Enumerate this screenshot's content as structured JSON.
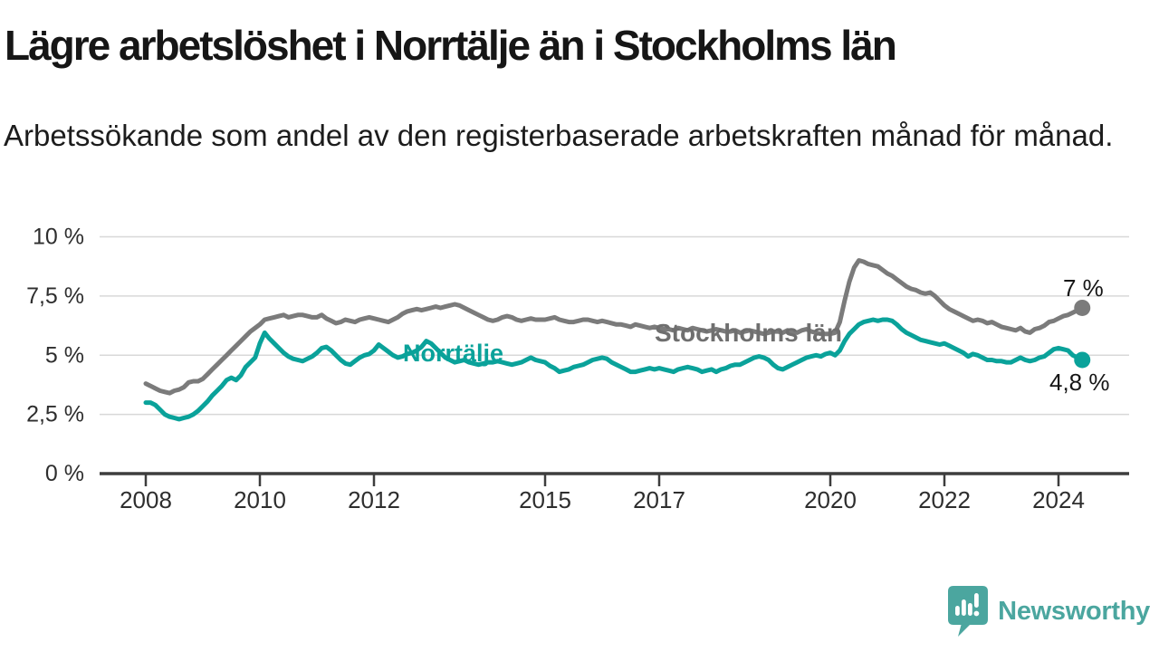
{
  "title": "Lägre arbetslöshet i Norrtälje än i Stockholms län",
  "subtitle": "Arbetssökande som andel av den registerbaserade arbetskraften månad för månad.",
  "branding": {
    "logo_text": "Newsworthy",
    "color": "#4BA69F"
  },
  "colors": {
    "stockholm_line": "#7b7b7b",
    "stockholm_label": "#6f6f6f",
    "norrtalje_line": "#0aa29a",
    "axis": "#3d3d3d",
    "grid": "#d8d8d8",
    "tick_text": "#2e2e2e",
    "end_label_text": "#161616"
  },
  "chart_data": {
    "type": "line",
    "unit": "%",
    "x_unit": "month",
    "x_start": "2008-01",
    "x_end": "2024-06",
    "ylim": [
      0,
      10
    ],
    "grid": "horizontal",
    "yticks": [
      {
        "value": 0,
        "label": "0 %"
      },
      {
        "value": 2.5,
        "label": "2,5 %"
      },
      {
        "value": 5,
        "label": "5 %"
      },
      {
        "value": 7.5,
        "label": "7,5 %"
      },
      {
        "value": 10,
        "label": "10 %"
      }
    ],
    "xticks": [
      {
        "year": 2008,
        "label": "2008"
      },
      {
        "year": 2010,
        "label": "2010"
      },
      {
        "year": 2012,
        "label": "2012"
      },
      {
        "year": 2015,
        "label": "2015"
      },
      {
        "year": 2017,
        "label": "2017"
      },
      {
        "year": 2020,
        "label": "2020"
      },
      {
        "year": 2022,
        "label": "2022"
      },
      {
        "year": 2024,
        "label": "2024"
      }
    ],
    "series": [
      {
        "name": "Stockholms län",
        "color": "#7b7b7b",
        "label_color": "#6f6f6f",
        "end_label": "7 %",
        "end_value": 7.0,
        "values": [
          3.8,
          3.7,
          3.6,
          3.5,
          3.45,
          3.4,
          3.5,
          3.55,
          3.65,
          3.85,
          3.9,
          3.9,
          4.0,
          4.2,
          4.4,
          4.6,
          4.8,
          5.0,
          5.2,
          5.4,
          5.6,
          5.8,
          6.0,
          6.15,
          6.3,
          6.5,
          6.55,
          6.6,
          6.65,
          6.7,
          6.6,
          6.65,
          6.7,
          6.7,
          6.65,
          6.6,
          6.6,
          6.7,
          6.55,
          6.45,
          6.35,
          6.4,
          6.5,
          6.45,
          6.4,
          6.5,
          6.55,
          6.6,
          6.55,
          6.5,
          6.45,
          6.4,
          6.5,
          6.6,
          6.75,
          6.85,
          6.9,
          6.95,
          6.9,
          6.95,
          7.0,
          7.05,
          7.0,
          7.05,
          7.1,
          7.15,
          7.1,
          7.0,
          6.9,
          6.8,
          6.7,
          6.6,
          6.5,
          6.45,
          6.5,
          6.6,
          6.65,
          6.6,
          6.5,
          6.45,
          6.5,
          6.55,
          6.5,
          6.5,
          6.5,
          6.55,
          6.6,
          6.5,
          6.45,
          6.4,
          6.4,
          6.45,
          6.5,
          6.5,
          6.45,
          6.4,
          6.45,
          6.4,
          6.35,
          6.3,
          6.3,
          6.25,
          6.2,
          6.3,
          6.25,
          6.2,
          6.15,
          6.2,
          6.15,
          6.1,
          6.1,
          6.05,
          6.15,
          6.1,
          6.05,
          6.15,
          6.1,
          6.05,
          6.0,
          6.05,
          6.1,
          6.05,
          6.0,
          6.0,
          6.05,
          5.95,
          6.0,
          6.05,
          6.0,
          5.95,
          5.9,
          5.95,
          6.0,
          6.0,
          5.95,
          6.05,
          6.0,
          5.95,
          6.05,
          6.1,
          6.0,
          5.95,
          5.9,
          5.9,
          5.9,
          5.95,
          6.4,
          7.3,
          8.1,
          8.7,
          9.0,
          8.95,
          8.85,
          8.8,
          8.75,
          8.6,
          8.45,
          8.35,
          8.2,
          8.05,
          7.9,
          7.8,
          7.75,
          7.65,
          7.6,
          7.65,
          7.5,
          7.3,
          7.1,
          6.95,
          6.85,
          6.75,
          6.65,
          6.55,
          6.45,
          6.5,
          6.45,
          6.35,
          6.4,
          6.3,
          6.2,
          6.15,
          6.1,
          6.05,
          6.15,
          6.0,
          5.95,
          6.1,
          6.15,
          6.25,
          6.4,
          6.45,
          6.55,
          6.65,
          6.7,
          6.8,
          6.9,
          7.0
        ]
      },
      {
        "name": "Norrtälje",
        "color": "#0aa29a",
        "label_color": "#0aa29a",
        "end_label": "4,8 %",
        "end_value": 4.8,
        "values": [
          3.0,
          3.0,
          2.9,
          2.7,
          2.5,
          2.4,
          2.35,
          2.3,
          2.35,
          2.4,
          2.5,
          2.65,
          2.85,
          3.05,
          3.3,
          3.5,
          3.7,
          3.95,
          4.05,
          3.95,
          4.15,
          4.5,
          4.7,
          4.9,
          5.5,
          5.95,
          5.7,
          5.5,
          5.3,
          5.1,
          4.95,
          4.85,
          4.8,
          4.75,
          4.85,
          4.95,
          5.1,
          5.3,
          5.35,
          5.2,
          5.0,
          4.8,
          4.65,
          4.6,
          4.75,
          4.9,
          5.0,
          5.05,
          5.2,
          5.45,
          5.3,
          5.15,
          5.0,
          4.9,
          4.95,
          5.05,
          5.1,
          5.2,
          5.35,
          5.6,
          5.5,
          5.3,
          5.1,
          4.9,
          4.8,
          4.7,
          4.75,
          4.8,
          4.7,
          4.65,
          4.6,
          4.65,
          4.7,
          4.7,
          4.75,
          4.7,
          4.65,
          4.6,
          4.65,
          4.7,
          4.8,
          4.9,
          4.8,
          4.75,
          4.7,
          4.55,
          4.45,
          4.3,
          4.35,
          4.4,
          4.5,
          4.55,
          4.6,
          4.7,
          4.8,
          4.85,
          4.9,
          4.85,
          4.7,
          4.6,
          4.5,
          4.4,
          4.3,
          4.3,
          4.35,
          4.4,
          4.45,
          4.4,
          4.45,
          4.4,
          4.35,
          4.3,
          4.4,
          4.45,
          4.5,
          4.45,
          4.4,
          4.3,
          4.35,
          4.4,
          4.3,
          4.4,
          4.45,
          4.55,
          4.6,
          4.6,
          4.7,
          4.8,
          4.9,
          4.95,
          4.9,
          4.8,
          4.6,
          4.45,
          4.4,
          4.5,
          4.6,
          4.7,
          4.8,
          4.9,
          4.95,
          5.0,
          4.95,
          5.05,
          5.1,
          5.0,
          5.2,
          5.6,
          5.9,
          6.1,
          6.3,
          6.4,
          6.45,
          6.5,
          6.45,
          6.5,
          6.5,
          6.45,
          6.3,
          6.1,
          5.95,
          5.85,
          5.75,
          5.65,
          5.6,
          5.55,
          5.5,
          5.45,
          5.5,
          5.4,
          5.3,
          5.2,
          5.1,
          4.95,
          5.05,
          5.0,
          4.9,
          4.8,
          4.8,
          4.75,
          4.75,
          4.7,
          4.7,
          4.8,
          4.9,
          4.8,
          4.75,
          4.8,
          4.9,
          4.95,
          5.1,
          5.25,
          5.3,
          5.25,
          5.2,
          5.0,
          4.9,
          4.8
        ]
      }
    ]
  }
}
